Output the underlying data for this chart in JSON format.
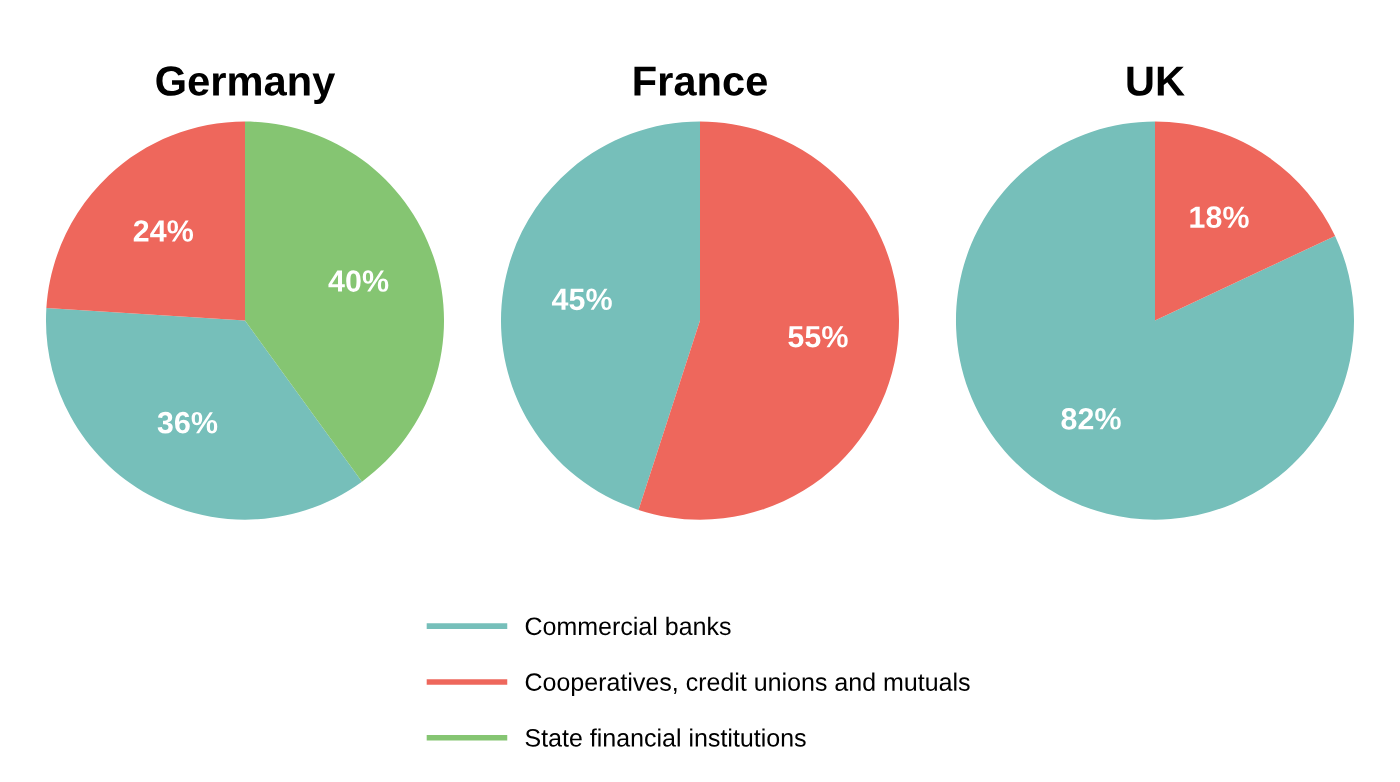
{
  "chart_data": [
    {
      "type": "pie",
      "title": "Germany",
      "categories": [
        "Commercial banks",
        "Cooperatives, credit unions and mutuals",
        "State financial institutions"
      ],
      "values": [
        36,
        24,
        40
      ],
      "value_labels": [
        "36%",
        "24%",
        "40%"
      ],
      "colors": [
        "#76bfba",
        "#ee675c",
        "#85c572"
      ],
      "legend": "bottom"
    },
    {
      "type": "pie",
      "title": "France",
      "categories": [
        null,
        null
      ],
      "values": [
        45,
        55
      ],
      "value_labels": [
        "45%",
        "55%"
      ],
      "colors": [
        "#76bfba",
        "#ee675c"
      ]
    },
    {
      "type": "pie",
      "title": "UK",
      "categories": [
        null,
        null
      ],
      "values": [
        82,
        18
      ],
      "value_labels": [
        "82%",
        "18%"
      ],
      "colors": [
        "#76bfba",
        "#ee675c"
      ]
    }
  ]
}
